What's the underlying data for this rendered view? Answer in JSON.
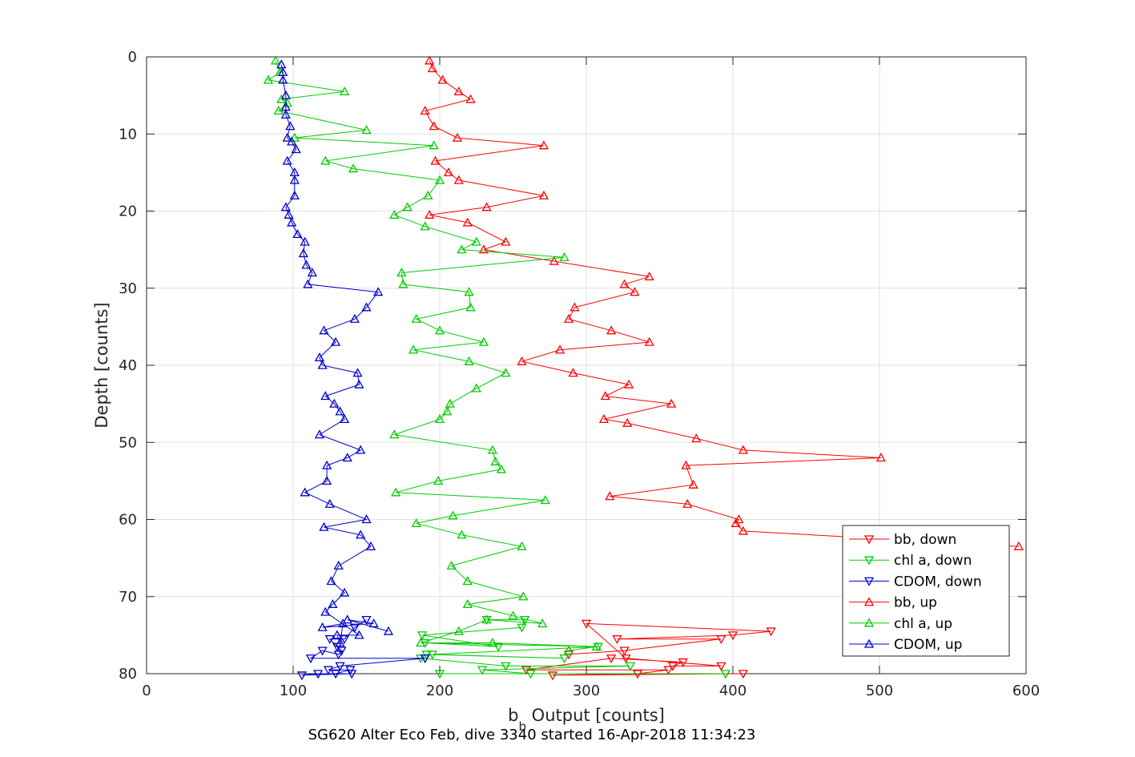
{
  "chart_data": {
    "type": "line",
    "xlabel_main": "b",
    "xlabel_sub": "b",
    "xlabel_rest": " Output [counts]",
    "ylabel": "Depth [counts]",
    "footer": "SG620 Alter Eco Feb, dive 3340 started 16-Apr-2018 11:34:23",
    "xlim": [
      0,
      600
    ],
    "ylim": [
      0,
      80
    ],
    "y_reversed": true,
    "grid": true,
    "legend_position": "bottom-right",
    "x_ticks": [
      "0",
      "100",
      "200",
      "300",
      "400",
      "500",
      "600"
    ],
    "y_ticks": [
      "0",
      "10",
      "20",
      "30",
      "40",
      "50",
      "60",
      "70",
      "80"
    ],
    "series": [
      {
        "name": "bb, down",
        "color": "#ff0000",
        "marker": "triangle-down",
        "points": [
          [
            288,
            77.5
          ],
          [
            326,
            77
          ],
          [
            392,
            75.5
          ],
          [
            321,
            75.5
          ],
          [
            400,
            75
          ],
          [
            426,
            74.5
          ],
          [
            300,
            73.5
          ],
          [
            327,
            78
          ],
          [
            392,
            79
          ],
          [
            359,
            79
          ],
          [
            366,
            78.5
          ],
          [
            317,
            78
          ],
          [
            259,
            79.5
          ],
          [
            356,
            79.5
          ],
          [
            335,
            80
          ],
          [
            277,
            80.2
          ],
          [
            407,
            80
          ]
        ]
      },
      {
        "name": "chl a, down",
        "color": "#00cc00",
        "marker": "triangle-down",
        "points": [
          [
            232,
            73
          ],
          [
            258,
            73
          ],
          [
            256,
            74
          ],
          [
            188,
            75
          ],
          [
            240,
            76.5
          ],
          [
            190,
            76
          ],
          [
            308,
            76.5
          ],
          [
            195,
            77.5
          ],
          [
            285,
            78
          ],
          [
            191,
            77.5
          ],
          [
            187,
            78
          ],
          [
            245,
            79
          ],
          [
            330,
            79
          ],
          [
            229,
            79.5
          ],
          [
            262,
            80
          ],
          [
            395,
            80
          ],
          [
            200,
            80
          ]
        ]
      },
      {
        "name": "CDOM, down",
        "color": "#0000cc",
        "marker": "triangle-down",
        "points": [
          [
            150,
            73
          ],
          [
            142,
            74
          ],
          [
            135,
            75.5
          ],
          [
            125,
            75.5
          ],
          [
            130,
            76.5
          ],
          [
            133,
            77
          ],
          [
            131,
            77.5
          ],
          [
            120,
            77
          ],
          [
            112,
            78
          ],
          [
            190,
            78
          ],
          [
            132,
            79
          ],
          [
            124,
            79.5
          ],
          [
            139,
            79.5
          ],
          [
            129,
            80
          ],
          [
            117,
            80
          ],
          [
            106,
            80.2
          ],
          [
            140,
            80
          ]
        ]
      },
      {
        "name": "bb, up",
        "color": "#ff0000",
        "marker": "triangle-up",
        "points": [
          [
            595,
            63.5
          ],
          [
            407,
            61.5
          ],
          [
            402,
            60.5
          ],
          [
            404,
            60
          ],
          [
            369,
            58
          ],
          [
            316,
            57
          ],
          [
            373,
            55.5
          ],
          [
            368,
            53
          ],
          [
            501,
            52
          ],
          [
            407,
            51
          ],
          [
            375,
            49.5
          ],
          [
            328,
            47.5
          ],
          [
            312,
            47
          ],
          [
            358,
            45
          ],
          [
            313,
            44
          ],
          [
            329,
            42.5
          ],
          [
            291,
            41
          ],
          [
            256,
            39.5
          ],
          [
            282,
            38
          ],
          [
            343,
            37
          ],
          [
            317,
            35.5
          ],
          [
            288,
            34
          ],
          [
            292,
            32.5
          ],
          [
            333,
            30.5
          ],
          [
            326,
            29.5
          ],
          [
            343,
            28.5
          ],
          [
            278,
            26.5
          ],
          [
            230,
            25
          ],
          [
            245,
            24
          ],
          [
            219,
            21.5
          ],
          [
            193,
            20.5
          ],
          [
            232,
            19.5
          ],
          [
            271,
            18
          ],
          [
            213,
            16
          ],
          [
            206,
            15
          ],
          [
            197,
            13.5
          ],
          [
            271,
            11.5
          ],
          [
            212,
            10.5
          ],
          [
            196,
            9
          ],
          [
            190,
            7
          ],
          [
            221,
            5.5
          ],
          [
            213,
            4.5
          ],
          [
            202,
            3
          ],
          [
            195,
            1.5
          ],
          [
            193,
            0.5
          ]
        ]
      },
      {
        "name": "chl a, up",
        "color": "#00cc00",
        "marker": "triangle-up",
        "points": [
          [
            288,
            77
          ],
          [
            307,
            76.5
          ],
          [
            236,
            76
          ],
          [
            187,
            76
          ],
          [
            213,
            74.5
          ],
          [
            232,
            73
          ],
          [
            270,
            73.5
          ],
          [
            250,
            72.5
          ],
          [
            219,
            71
          ],
          [
            257,
            70
          ],
          [
            219,
            68
          ],
          [
            208,
            66
          ],
          [
            256,
            63.5
          ],
          [
            215,
            62
          ],
          [
            184,
            60.5
          ],
          [
            209,
            59.5
          ],
          [
            272,
            57.5
          ],
          [
            170,
            56.5
          ],
          [
            199,
            55
          ],
          [
            242,
            53.5
          ],
          [
            238,
            52.5
          ],
          [
            236,
            51
          ],
          [
            169,
            49
          ],
          [
            200,
            47
          ],
          [
            205,
            46
          ],
          [
            207,
            45
          ],
          [
            225,
            43
          ],
          [
            245,
            41
          ],
          [
            220,
            39.5
          ],
          [
            182,
            38
          ],
          [
            230,
            37
          ],
          [
            200,
            35.5
          ],
          [
            184,
            34
          ],
          [
            221,
            32.5
          ],
          [
            220,
            30.5
          ],
          [
            175,
            29.5
          ],
          [
            174,
            28
          ],
          [
            285,
            26
          ],
          [
            215,
            25
          ],
          [
            225,
            24
          ],
          [
            190,
            22
          ],
          [
            169,
            20.5
          ],
          [
            178,
            19.5
          ],
          [
            192,
            18
          ],
          [
            200,
            16
          ],
          [
            141,
            14.5
          ],
          [
            122,
            13.5
          ],
          [
            196,
            11.5
          ],
          [
            101,
            10.5
          ],
          [
            150,
            9.5
          ],
          [
            90,
            7
          ],
          [
            96,
            6
          ],
          [
            92,
            5.5
          ],
          [
            135,
            4.5
          ],
          [
            83,
            3
          ],
          [
            91,
            2
          ],
          [
            88,
            0.5
          ]
        ]
      },
      {
        "name": "CDOM, up",
        "color": "#0000cc",
        "marker": "triangle-up",
        "points": [
          [
            165,
            74.5
          ],
          [
            137,
            73
          ],
          [
            155,
            73.5
          ],
          [
            120,
            74
          ],
          [
            134,
            73.5
          ],
          [
            132,
            76
          ],
          [
            130,
            75
          ],
          [
            145,
            75
          ],
          [
            122,
            72
          ],
          [
            127,
            71
          ],
          [
            135,
            69.5
          ],
          [
            126,
            68
          ],
          [
            131,
            66
          ],
          [
            153,
            63.5
          ],
          [
            146,
            62
          ],
          [
            121,
            61
          ],
          [
            150,
            60
          ],
          [
            125,
            58
          ],
          [
            108,
            56.5
          ],
          [
            123,
            55
          ],
          [
            123,
            53
          ],
          [
            137,
            52
          ],
          [
            146,
            51
          ],
          [
            118,
            49
          ],
          [
            135,
            47
          ],
          [
            132,
            46
          ],
          [
            128,
            45
          ],
          [
            122,
            44
          ],
          [
            145,
            42.5
          ],
          [
            144,
            41
          ],
          [
            120,
            40
          ],
          [
            118,
            39
          ],
          [
            129,
            37
          ],
          [
            121,
            35.5
          ],
          [
            142,
            34
          ],
          [
            150,
            32.5
          ],
          [
            158,
            30.5
          ],
          [
            110,
            29.5
          ],
          [
            113,
            28
          ],
          [
            109,
            27
          ],
          [
            107,
            25.5
          ],
          [
            108,
            24
          ],
          [
            103,
            23
          ],
          [
            99,
            21.5
          ],
          [
            97,
            20.5
          ],
          [
            95,
            19.5
          ],
          [
            101,
            18
          ],
          [
            101,
            16
          ],
          [
            101,
            15
          ],
          [
            96,
            13.5
          ],
          [
            102,
            12
          ],
          [
            99,
            11
          ],
          [
            96,
            10.5
          ],
          [
            98,
            9
          ],
          [
            95,
            7.5
          ],
          [
            95,
            6.5
          ],
          [
            95,
            5
          ],
          [
            93,
            3
          ],
          [
            93,
            2
          ],
          [
            92,
            1
          ]
        ]
      }
    ]
  }
}
